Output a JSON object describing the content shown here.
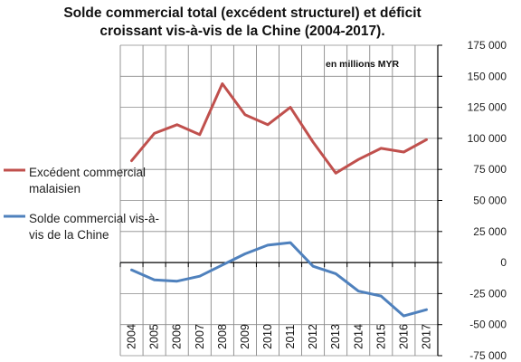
{
  "chart_data": {
    "type": "line",
    "title_lines": [
      "Solde commercial total (excédent structurel) et déficit",
      "croissant vis-à-vis de la Chine (2004-2017)."
    ],
    "unit_label": "en millions MYR",
    "categories": [
      "2004",
      "2005",
      "2006",
      "2007",
      "2008",
      "2009",
      "2010",
      "2011",
      "2012",
      "2013",
      "2014",
      "2015",
      "2016",
      "2017"
    ],
    "y_ticks": [
      -75000,
      -50000,
      -25000,
      0,
      25000,
      50000,
      75000,
      100000,
      125000,
      150000,
      175000
    ],
    "y_tick_labels": [
      "-75 000",
      "-50 000",
      "-25 000",
      "0",
      "25 000",
      "50 000",
      "75 000",
      "100 000",
      "125 000",
      "150 000",
      "175 000"
    ],
    "ylim": [
      -75000,
      175000
    ],
    "y_axis_side": "right",
    "grid": true,
    "legend_position": "left",
    "series": [
      {
        "name_lines": [
          "Excédent commercial",
          "malaisien"
        ],
        "color": "#c0504d",
        "values": [
          82000,
          104000,
          111000,
          103000,
          144000,
          119000,
          111000,
          125000,
          97000,
          72000,
          83000,
          92000,
          89000,
          99000
        ]
      },
      {
        "name_lines": [
          "Solde commercial vis-à-",
          "vis de la Chine"
        ],
        "color": "#4f81bd",
        "values": [
          -6000,
          -14000,
          -15000,
          -11000,
          -2000,
          7000,
          14000,
          16000,
          -3000,
          -9000,
          -23000,
          -27000,
          -43000,
          -38000
        ]
      }
    ]
  }
}
